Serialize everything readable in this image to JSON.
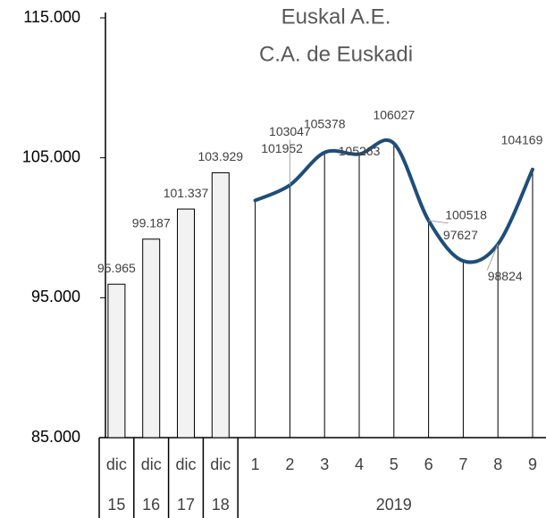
{
  "chart_data": {
    "type": "combo",
    "title": "Euskal A.E.",
    "subtitle": "C.A. de Euskadi",
    "groups": [
      {
        "label": "15",
        "categories": [
          "dic"
        ]
      },
      {
        "label": "16",
        "categories": [
          "dic"
        ]
      },
      {
        "label": "17",
        "categories": [
          "dic"
        ]
      },
      {
        "label": "18",
        "categories": [
          "dic"
        ]
      },
      {
        "label": "2019",
        "categories": [
          "1",
          "2",
          "3",
          "4",
          "5",
          "6",
          "7",
          "8",
          "9"
        ]
      }
    ],
    "series": [
      {
        "type": "bar",
        "color": "#f2f2f2",
        "values": [
          95965,
          99187,
          101337,
          103929,
          null,
          null,
          null,
          null,
          null,
          null,
          null,
          null,
          null
        ],
        "value_labels": [
          "95.965",
          "99.187",
          "101.337",
          "103.929",
          null,
          null,
          null,
          null,
          null,
          null,
          null,
          null,
          null
        ]
      },
      {
        "type": "line",
        "color": "#1f4e79",
        "drop_lines": true,
        "values": [
          null,
          null,
          null,
          null,
          101952,
          103047,
          105378,
          105263,
          106027,
          100518,
          97627,
          98824,
          104169
        ]
      }
    ],
    "ylim": [
      85000,
      115000
    ],
    "yticks": [
      {
        "value": 85000,
        "label": "85.000"
      },
      {
        "value": 95000,
        "label": "95.000"
      },
      {
        "value": 105000,
        "label": "105.000"
      },
      {
        "value": 115000,
        "label": "115.000"
      }
    ]
  }
}
